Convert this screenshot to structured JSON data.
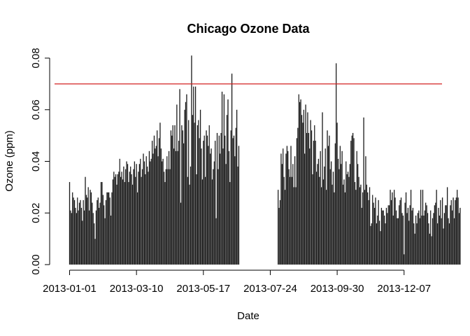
{
  "chart_data": {
    "type": "bar",
    "title": "Chicago Ozone Data",
    "xlabel": "Date",
    "ylabel": "Ozone (ppm)",
    "x_start": "2013-01-01",
    "x_end": "2013-12-31",
    "x_ticks": [
      "2013-01-01",
      "2013-03-10",
      "2013-05-17",
      "2013-07-24",
      "2013-09-30",
      "2013-12-07"
    ],
    "y_ticks": [
      "0.00",
      "0.02",
      "0.04",
      "0.06",
      "0.08"
    ],
    "ylim": [
      0,
      0.08
    ],
    "reference_line": {
      "value": 0.07,
      "color": "#d42020"
    },
    "bar_color": "#1a1a1a",
    "gap": [
      "2013-06-22",
      "2013-07-31"
    ],
    "series": [
      {
        "name": "Ozone (ppm)",
        "values": [
          0.032,
          0.021,
          0.02,
          0.028,
          0.026,
          0.025,
          0.022,
          0.02,
          0.026,
          0.021,
          0.024,
          0.025,
          0.022,
          0.017,
          0.025,
          0.021,
          0.034,
          0.027,
          0.026,
          0.03,
          0.021,
          0.029,
          0.028,
          0.024,
          0.02,
          0.016,
          0.01,
          0.021,
          0.025,
          0.026,
          0.022,
          0.024,
          0.032,
          0.032,
          0.027,
          0.023,
          0.018,
          0.025,
          0.028,
          0.028,
          0.028,
          0.026,
          0.019,
          0.028,
          0.033,
          0.036,
          0.034,
          0.035,
          0.031,
          0.035,
          0.036,
          0.041,
          0.034,
          0.036,
          0.033,
          0.038,
          0.032,
          0.037,
          0.04,
          0.039,
          0.032,
          0.036,
          0.038,
          0.035,
          0.031,
          0.037,
          0.04,
          0.034,
          0.039,
          0.028,
          0.036,
          0.039,
          0.041,
          0.034,
          0.037,
          0.043,
          0.04,
          0.035,
          0.042,
          0.038,
          0.036,
          0.044,
          0.04,
          0.041,
          0.048,
          0.043,
          0.05,
          0.045,
          0.046,
          0.052,
          0.042,
          0.049,
          0.055,
          0.045,
          0.04,
          0.041,
          0.036,
          0.032,
          0.037,
          0.042,
          0.037,
          0.044,
          0.037,
          0.052,
          0.05,
          0.054,
          0.045,
          0.054,
          0.044,
          0.062,
          0.044,
          0.048,
          0.068,
          0.024,
          0.054,
          0.052,
          0.047,
          0.06,
          0.063,
          0.066,
          0.034,
          0.056,
          0.031,
          0.038,
          0.081,
          0.058,
          0.069,
          0.055,
          0.069,
          0.035,
          0.054,
          0.056,
          0.049,
          0.06,
          0.045,
          0.033,
          0.048,
          0.05,
          0.034,
          0.052,
          0.05,
          0.046,
          0.054,
          0.043,
          0.045,
          0.033,
          0.037,
          0.04,
          0.048,
          0.018,
          0.051,
          0.037,
          0.05,
          0.043,
          0.051,
          0.067,
          0.045,
          0.066,
          0.05,
          0.039,
          0.058,
          0.064,
          0.044,
          0.032,
          0.052,
          0.074,
          0.049,
          0.05,
          0.042,
          0.053,
          0.06,
          0.038,
          0.046,
          null,
          null,
          null,
          null,
          null,
          null,
          null,
          null,
          null,
          null,
          null,
          null,
          null,
          null,
          null,
          null,
          null,
          null,
          null,
          null,
          null,
          null,
          null,
          null,
          null,
          null,
          null,
          null,
          null,
          null,
          null,
          null,
          null,
          null,
          null,
          null,
          null,
          null,
          null,
          0.029,
          0.022,
          0.025,
          0.043,
          0.039,
          0.045,
          0.034,
          0.029,
          0.043,
          0.046,
          0.044,
          0.037,
          0.034,
          0.046,
          0.034,
          0.039,
          0.03,
          0.042,
          0.03,
          0.049,
          0.053,
          0.066,
          0.063,
          0.064,
          0.058,
          0.055,
          0.06,
          0.043,
          0.062,
          0.051,
          0.059,
          0.051,
          0.045,
          0.056,
          0.052,
          0.035,
          0.048,
          0.054,
          0.048,
          0.036,
          0.039,
          0.041,
          0.034,
          0.044,
          0.03,
          0.059,
          0.033,
          0.038,
          0.045,
          0.029,
          0.052,
          0.046,
          0.05,
          0.037,
          0.04,
          0.031,
          0.036,
          0.028,
          0.047,
          0.078,
          0.055,
          0.041,
          0.037,
          0.046,
          0.039,
          0.044,
          0.031,
          0.033,
          0.028,
          0.04,
          0.035,
          0.036,
          0.034,
          0.039,
          0.048,
          0.05,
          0.051,
          0.049,
          0.032,
          0.029,
          0.044,
          0.039,
          0.034,
          0.03,
          0.031,
          0.022,
          0.028,
          0.057,
          0.029,
          0.042,
          0.031,
          0.028,
          0.025,
          0.03,
          0.015,
          0.016,
          0.027,
          0.024,
          0.022,
          0.026,
          0.016,
          0.019,
          0.025,
          0.017,
          0.013,
          0.022,
          0.021,
          0.021,
          0.019,
          0.016,
          0.022,
          0.02,
          0.023,
          0.023,
          0.029,
          0.025,
          0.028,
          0.019,
          0.029,
          0.026,
          0.021,
          0.018,
          0.018,
          0.023,
          0.025,
          0.026,
          0.02,
          0.019,
          0.004,
          0.024,
          0.028,
          0.02,
          0.022,
          0.017,
          0.023,
          0.029,
          0.021,
          0.022,
          0.016,
          0.012,
          0.019,
          0.016,
          0.02,
          0.021,
          0.018,
          0.029,
          0.019,
          0.029,
          0.019,
          0.021,
          0.024,
          0.023,
          0.02,
          0.016,
          0.012,
          0.021,
          0.011,
          0.018,
          0.02,
          0.023,
          0.024,
          0.029,
          0.016,
          0.022,
          0.019,
          0.025,
          0.018,
          0.026,
          0.014,
          0.02,
          0.023,
          0.023,
          0.03,
          0.018,
          0.016,
          0.023,
          0.025,
          0.021,
          0.026,
          0.018,
          0.025,
          0.026,
          0.029,
          0.026,
          0.02,
          0.022
        ]
      }
    ]
  }
}
